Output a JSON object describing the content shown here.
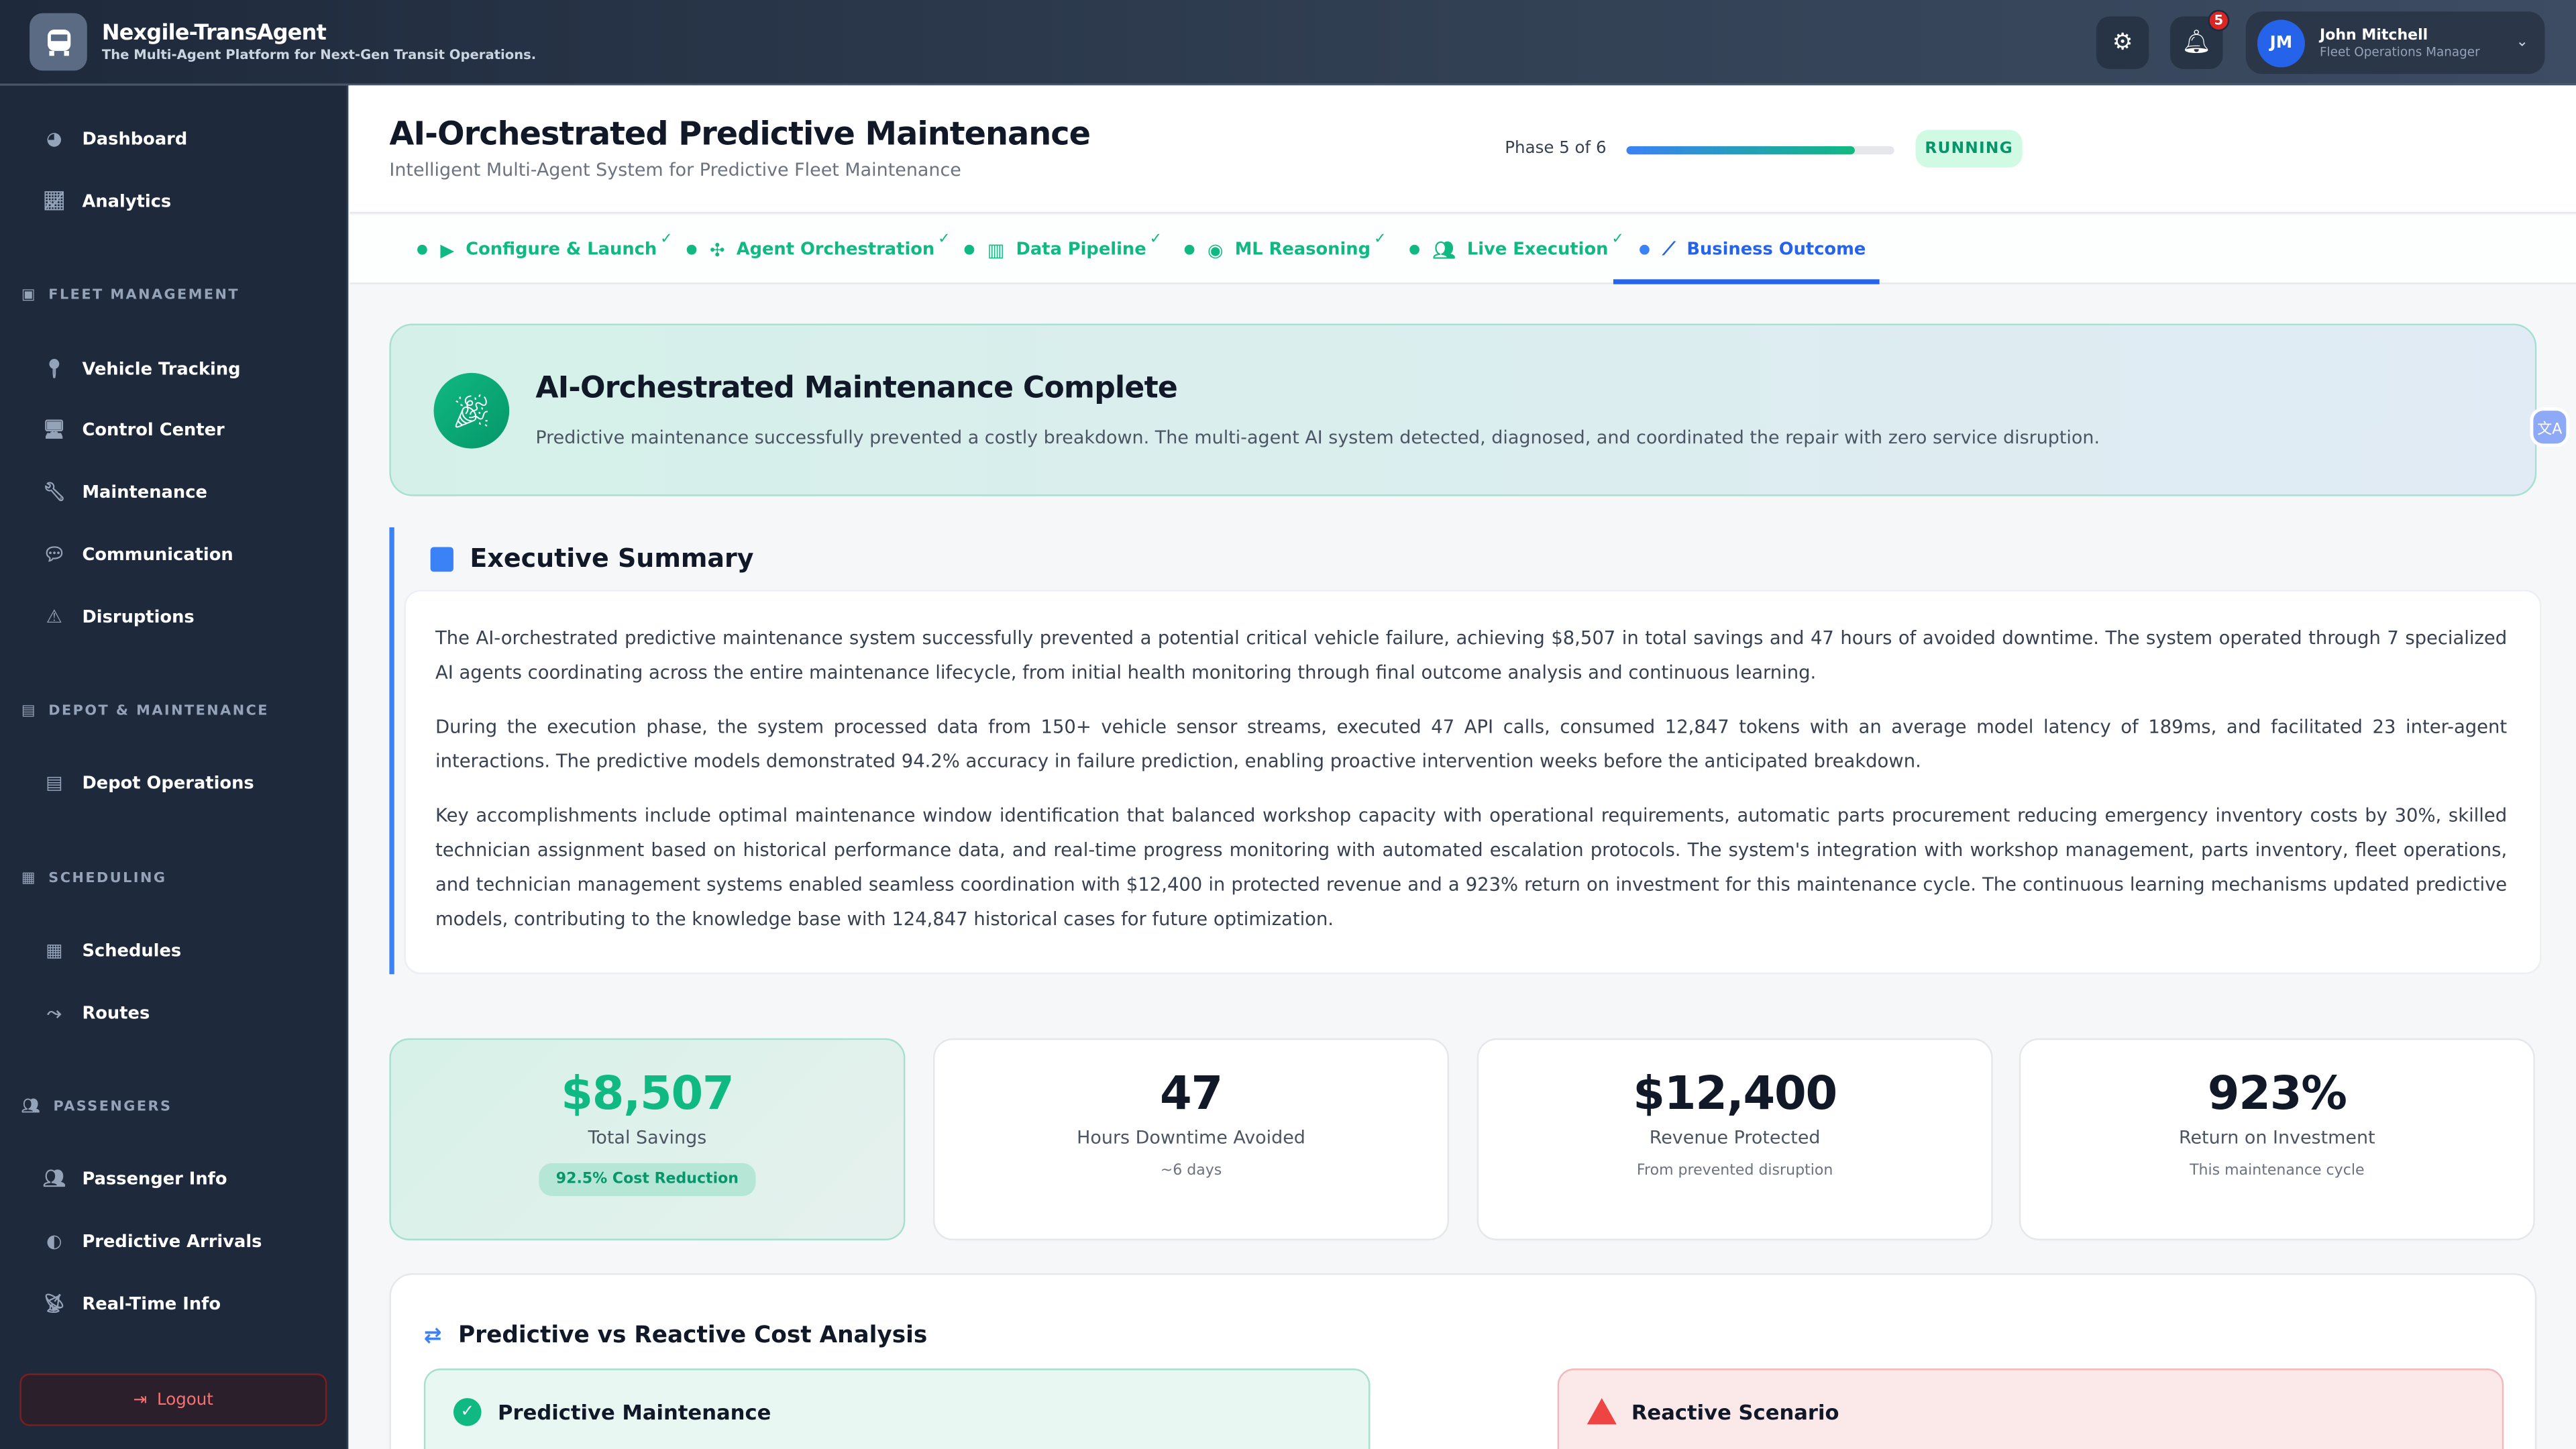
{
  "header": {
    "app_name": "Nexgile-TransAgent",
    "tagline": "The Multi-Agent Platform for Next-Gen Transit Operations.",
    "notifications_count": "5",
    "user": {
      "initials": "JM",
      "name": "John Mitchell",
      "role": "Fleet Operations Manager"
    }
  },
  "sidebar": {
    "top": [
      {
        "label": "Dashboard",
        "icon": "gauge-icon"
      },
      {
        "label": "Analytics",
        "icon": "chart-line-icon"
      }
    ],
    "sections": [
      {
        "title": "FLEET MANAGEMENT",
        "items": [
          {
            "label": "Vehicle Tracking"
          },
          {
            "label": "Control Center"
          },
          {
            "label": "Maintenance"
          },
          {
            "label": "Communication"
          },
          {
            "label": "Disruptions"
          }
        ]
      },
      {
        "title": "DEPOT & MAINTENANCE",
        "items": [
          {
            "label": "Depot Operations"
          }
        ]
      },
      {
        "title": "SCHEDULING",
        "items": [
          {
            "label": "Schedules"
          },
          {
            "label": "Routes"
          }
        ]
      },
      {
        "title": "PASSENGERS",
        "items": [
          {
            "label": "Passenger Info"
          },
          {
            "label": "Predictive Arrivals"
          },
          {
            "label": "Real-Time Info"
          }
        ]
      }
    ],
    "logout": "Logout"
  },
  "page": {
    "title": "AI-Orchestrated Predictive Maintenance",
    "subtitle": "Intelligent Multi-Agent System for Predictive Fleet Maintenance",
    "phase_label": "Phase 5 of 6",
    "phase_progress_percent": 85,
    "status": "RUNNING"
  },
  "tabs": [
    {
      "label": "Configure & Launch",
      "done": "✓"
    },
    {
      "label": "Agent Orchestration",
      "done": "✓"
    },
    {
      "label": "Data Pipeline",
      "done": "✓"
    },
    {
      "label": "ML Reasoning",
      "done": "✓"
    },
    {
      "label": "Live Execution",
      "done": "✓"
    },
    {
      "label": "Business Outcome",
      "active": true
    }
  ],
  "hero": {
    "title": "AI-Orchestrated Maintenance Complete",
    "text": "Predictive maintenance successfully prevented a costly breakdown. The multi-agent AI system detected, diagnosed, and coordinated the repair with zero service disruption."
  },
  "summary": {
    "title": "Executive Summary",
    "paragraphs": [
      "The AI-orchestrated predictive maintenance system successfully prevented a potential critical vehicle failure, achieving $8,507 in total savings and 47 hours of avoided downtime. The system operated through 7 specialized AI agents coordinating across the entire maintenance lifecycle, from initial health monitoring through final outcome analysis and continuous learning.",
      "During the execution phase, the system processed data from 150+ vehicle sensor streams, executed 47 API calls, consumed 12,847 tokens with an average model latency of 189ms, and facilitated 23 inter-agent interactions. The predictive models demonstrated 94.2% accuracy in failure prediction, enabling proactive intervention weeks before the anticipated breakdown.",
      "Key accomplishments include optimal maintenance window identification that balanced workshop capacity with operational requirements, automatic parts procurement reducing emergency inventory costs by 30%, skilled technician assignment based on historical performance data, and real-time progress monitoring with automated escalation protocols. The system's integration with workshop management, parts inventory, fleet operations, and technician management systems enabled seamless coordination with $12,400 in protected revenue and a 923% return on investment for this maintenance cycle. The continuous learning mechanisms updated predictive models, contributing to the knowledge base with 124,847 historical cases for future optimization."
    ]
  },
  "metrics": [
    {
      "value": "$8,507",
      "label": "Total Savings",
      "badge": "92.5% Cost Reduction"
    },
    {
      "value": "47",
      "label": "Hours Downtime Avoided",
      "sub": "~6 days"
    },
    {
      "value": "$12,400",
      "label": "Revenue Protected",
      "sub": "From prevented disruption"
    },
    {
      "value": "923%",
      "label": "Return on Investment",
      "sub": "This maintenance cycle"
    }
  ],
  "cost_analysis": {
    "title": "Predictive vs Reactive Cost Analysis",
    "predictive_title": "Predictive Maintenance",
    "reactive_title": "Reactive Scenario"
  },
  "colors": {
    "accent_green": "#10b981",
    "accent_blue": "#2563eb",
    "danger": "#ef4444",
    "sidebar_bg": "#1e293b"
  }
}
